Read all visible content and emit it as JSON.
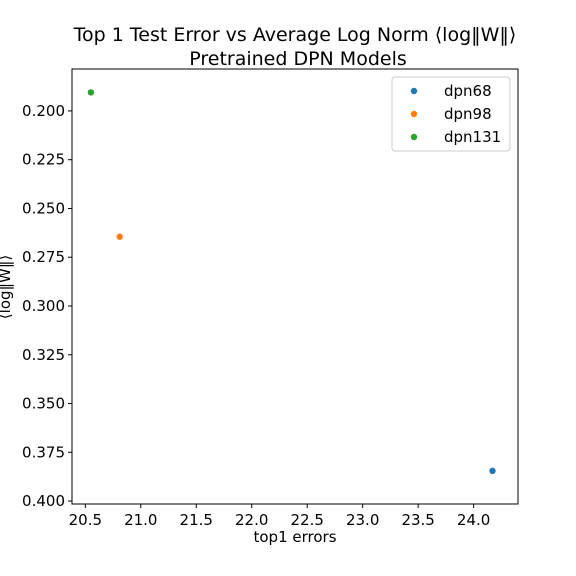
{
  "chart_data": {
    "type": "scatter",
    "title": "Top 1 Test Error vs  Average Log Norm ⟨log‖W‖⟩",
    "subtitle": "Pretrained DPN Models",
    "xlabel": "top1 errors",
    "ylabel": "⟨log‖W‖⟩",
    "xlim": [
      20.38,
      24.4
    ],
    "ylim": [
      0.4015,
      0.1785
    ],
    "y_inverted": true,
    "grid": false,
    "legend_position": "top-right",
    "x_ticks": [
      "20.5",
      "21.0",
      "21.5",
      "22.0",
      "22.5",
      "23.0",
      "23.5",
      "24.0"
    ],
    "x_tick_values": [
      20.5,
      21.0,
      21.5,
      22.0,
      22.5,
      23.0,
      23.5,
      24.0
    ],
    "y_ticks": [
      "0.200",
      "0.225",
      "0.250",
      "0.275",
      "0.300",
      "0.325",
      "0.350",
      "0.375",
      "0.400"
    ],
    "y_tick_values": [
      0.2,
      0.225,
      0.25,
      0.275,
      0.3,
      0.325,
      0.35,
      0.375,
      0.4
    ],
    "series": [
      {
        "name": "dpn68",
        "color": "#1f77b4",
        "x": [
          24.17
        ],
        "y": [
          0.3845
        ]
      },
      {
        "name": "dpn98",
        "color": "#ff7f0e",
        "x": [
          20.81
        ],
        "y": [
          0.2645
        ]
      },
      {
        "name": "dpn131",
        "color": "#2ca02c",
        "x": [
          20.55
        ],
        "y": [
          0.1905
        ]
      }
    ]
  }
}
